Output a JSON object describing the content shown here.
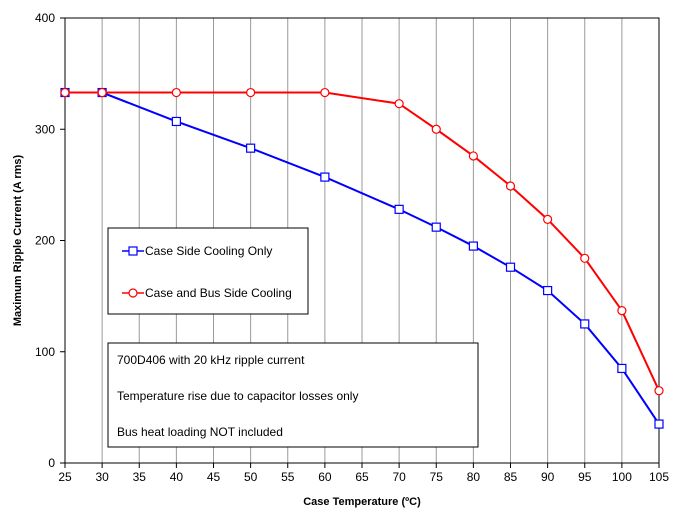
{
  "chart_data": {
    "type": "line",
    "title": "",
    "xlabel": "Case Temperature (ºC)",
    "ylabel": "Maximum Ripple Current (A rms)",
    "x": [
      25,
      30,
      40,
      50,
      60,
      70,
      75,
      80,
      85,
      90,
      95,
      100,
      105
    ],
    "x_ticks": [
      25,
      30,
      35,
      40,
      45,
      50,
      55,
      60,
      65,
      70,
      75,
      80,
      85,
      90,
      95,
      100,
      105
    ],
    "y_ticks": [
      0,
      100,
      200,
      300,
      400
    ],
    "xlim": [
      25,
      105
    ],
    "ylim": [
      0,
      400
    ],
    "grid": "vertical",
    "legend_position": "center-left",
    "series": [
      {
        "name": "Case Side Cooling Only",
        "color": "#0000ff",
        "marker": "square",
        "values": [
          333,
          333,
          307,
          283,
          257,
          228,
          212,
          195,
          176,
          155,
          125,
          85,
          35
        ]
      },
      {
        "name": "Case and Bus Side Cooling",
        "color": "#ff0000",
        "marker": "circle",
        "values": [
          333,
          333,
          333,
          333,
          333,
          323,
          300,
          276,
          249,
          219,
          184,
          137,
          65
        ]
      }
    ],
    "annotations": [
      "700D406 with 20 kHz ripple current",
      "Temperature rise due to capacitor losses only",
      "Bus heat loading NOT included"
    ]
  }
}
